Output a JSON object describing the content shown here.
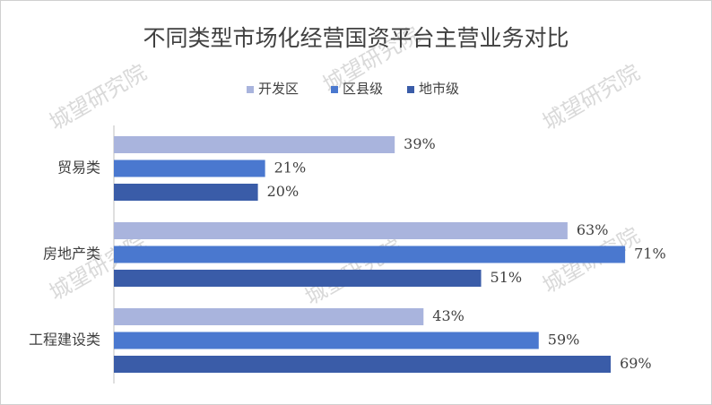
{
  "chart_data": {
    "type": "hbar",
    "title": "不同类型市场化经营国资平台主营业务对比",
    "categories": [
      "贸易类",
      "房地产类",
      "工程建设类"
    ],
    "series": [
      {
        "name": "开发区",
        "color": "#a9b4dd",
        "values": [
          39,
          63,
          43
        ],
        "value_labels": [
          "39%",
          "63%",
          "43%"
        ]
      },
      {
        "name": "区县级",
        "color": "#4a78cf",
        "values": [
          21,
          71,
          59
        ],
        "value_labels": [
          "21%",
          "71%",
          "59%"
        ]
      },
      {
        "name": "地市级",
        "color": "#3a5ca8",
        "values": [
          20,
          51,
          69
        ],
        "value_labels": [
          "20%",
          "51%",
          "69%"
        ]
      }
    ],
    "xlim": [
      0,
      80
    ],
    "legend": "top"
  },
  "watermark": "城望研究院"
}
